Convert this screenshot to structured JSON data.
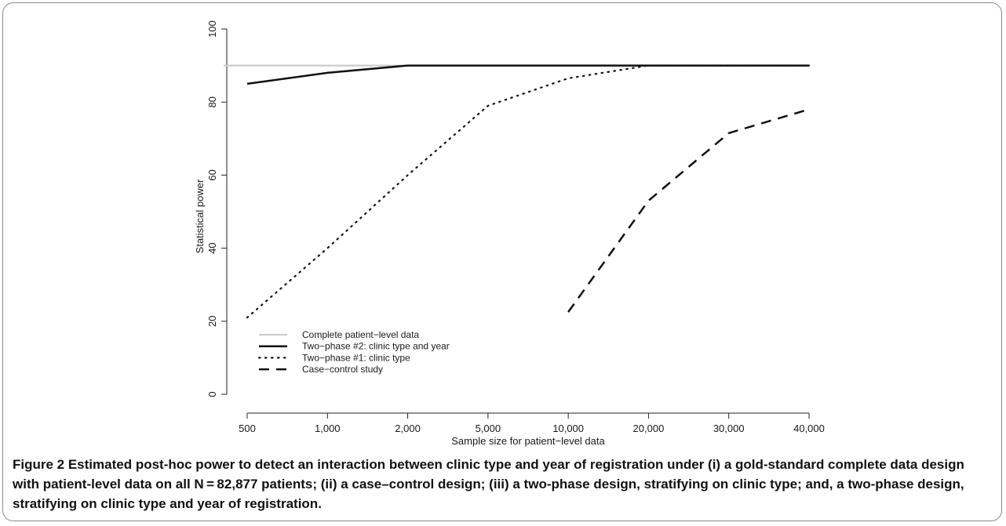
{
  "chart_data": {
    "type": "line",
    "title": "",
    "xlabel": "Sample size for patient−level data",
    "ylabel": "Statistical power",
    "ylim": [
      0,
      100
    ],
    "yticks": [
      "0",
      "20",
      "40",
      "60",
      "80",
      "100"
    ],
    "x": [
      "500",
      "1,000",
      "2,000",
      "5,000",
      "10,000",
      "20,000",
      "30,000",
      "40,000"
    ],
    "grid": false,
    "legend_position": "bottom-left",
    "series": [
      {
        "name": "Complete patient−level data",
        "style": "solid",
        "color": "#cccccc",
        "values": [
          90,
          90,
          90,
          90,
          90,
          90,
          90,
          90
        ]
      },
      {
        "name": "Two−phase #2: clinic type and year",
        "style": "solid",
        "color": "#111111",
        "values": [
          85,
          88,
          90,
          90,
          90,
          90,
          90,
          90
        ]
      },
      {
        "name": "Two−phase #1: clinic type",
        "style": "dotted",
        "color": "#111111",
        "values": [
          21,
          40,
          60,
          79,
          86.5,
          90,
          90,
          90
        ]
      },
      {
        "name": "Case−control study",
        "style": "dashed",
        "color": "#111111",
        "values": [
          null,
          null,
          null,
          null,
          22.5,
          53,
          71.5,
          78
        ]
      }
    ]
  },
  "caption": {
    "label": "Figure 2",
    "text": " Estimated post-hoc power to detect an interaction between clinic type and year of registration under (i) a gold-standard complete data design with patient-level data on all N = 82,877 patients; (ii) a case–control design; (iii) a two-phase design, stratifying on clinic type; and, a two-phase design, stratifying on clinic type and year of registration."
  }
}
